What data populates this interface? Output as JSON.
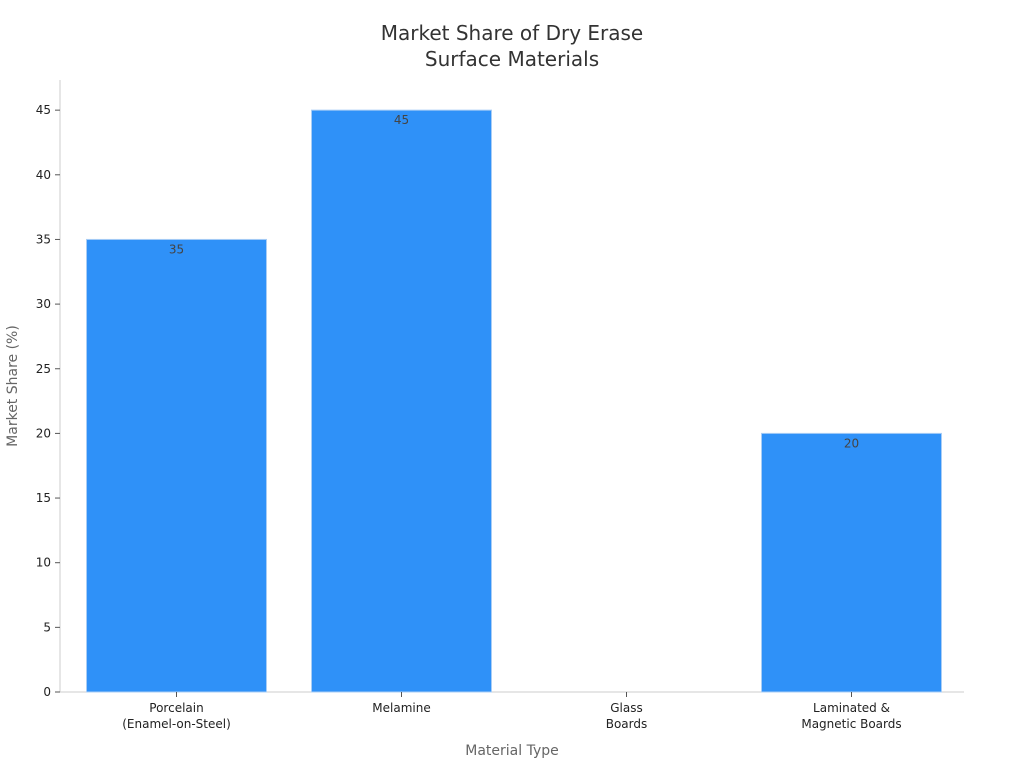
{
  "chart_data": {
    "type": "bar",
    "title": [
      "Market Share of Dry Erase",
      "Surface Materials"
    ],
    "xlabel": "Material Type",
    "ylabel": "Market Share (%)",
    "categories": [
      [
        "Porcelain",
        "(Enamel-on-Steel)"
      ],
      [
        "Melamine"
      ],
      [
        "Glass",
        "Boards"
      ],
      [
        "Laminated &",
        "Magnetic Boards"
      ]
    ],
    "values": [
      35,
      45,
      null,
      20
    ],
    "data_labels": [
      "35",
      "45",
      "",
      "20"
    ],
    "ylim": [
      0,
      47
    ],
    "yticks": [
      0,
      5,
      10,
      15,
      20,
      25,
      30,
      35,
      40,
      45
    ],
    "grid": false,
    "bar_color": "#2f91f8"
  }
}
